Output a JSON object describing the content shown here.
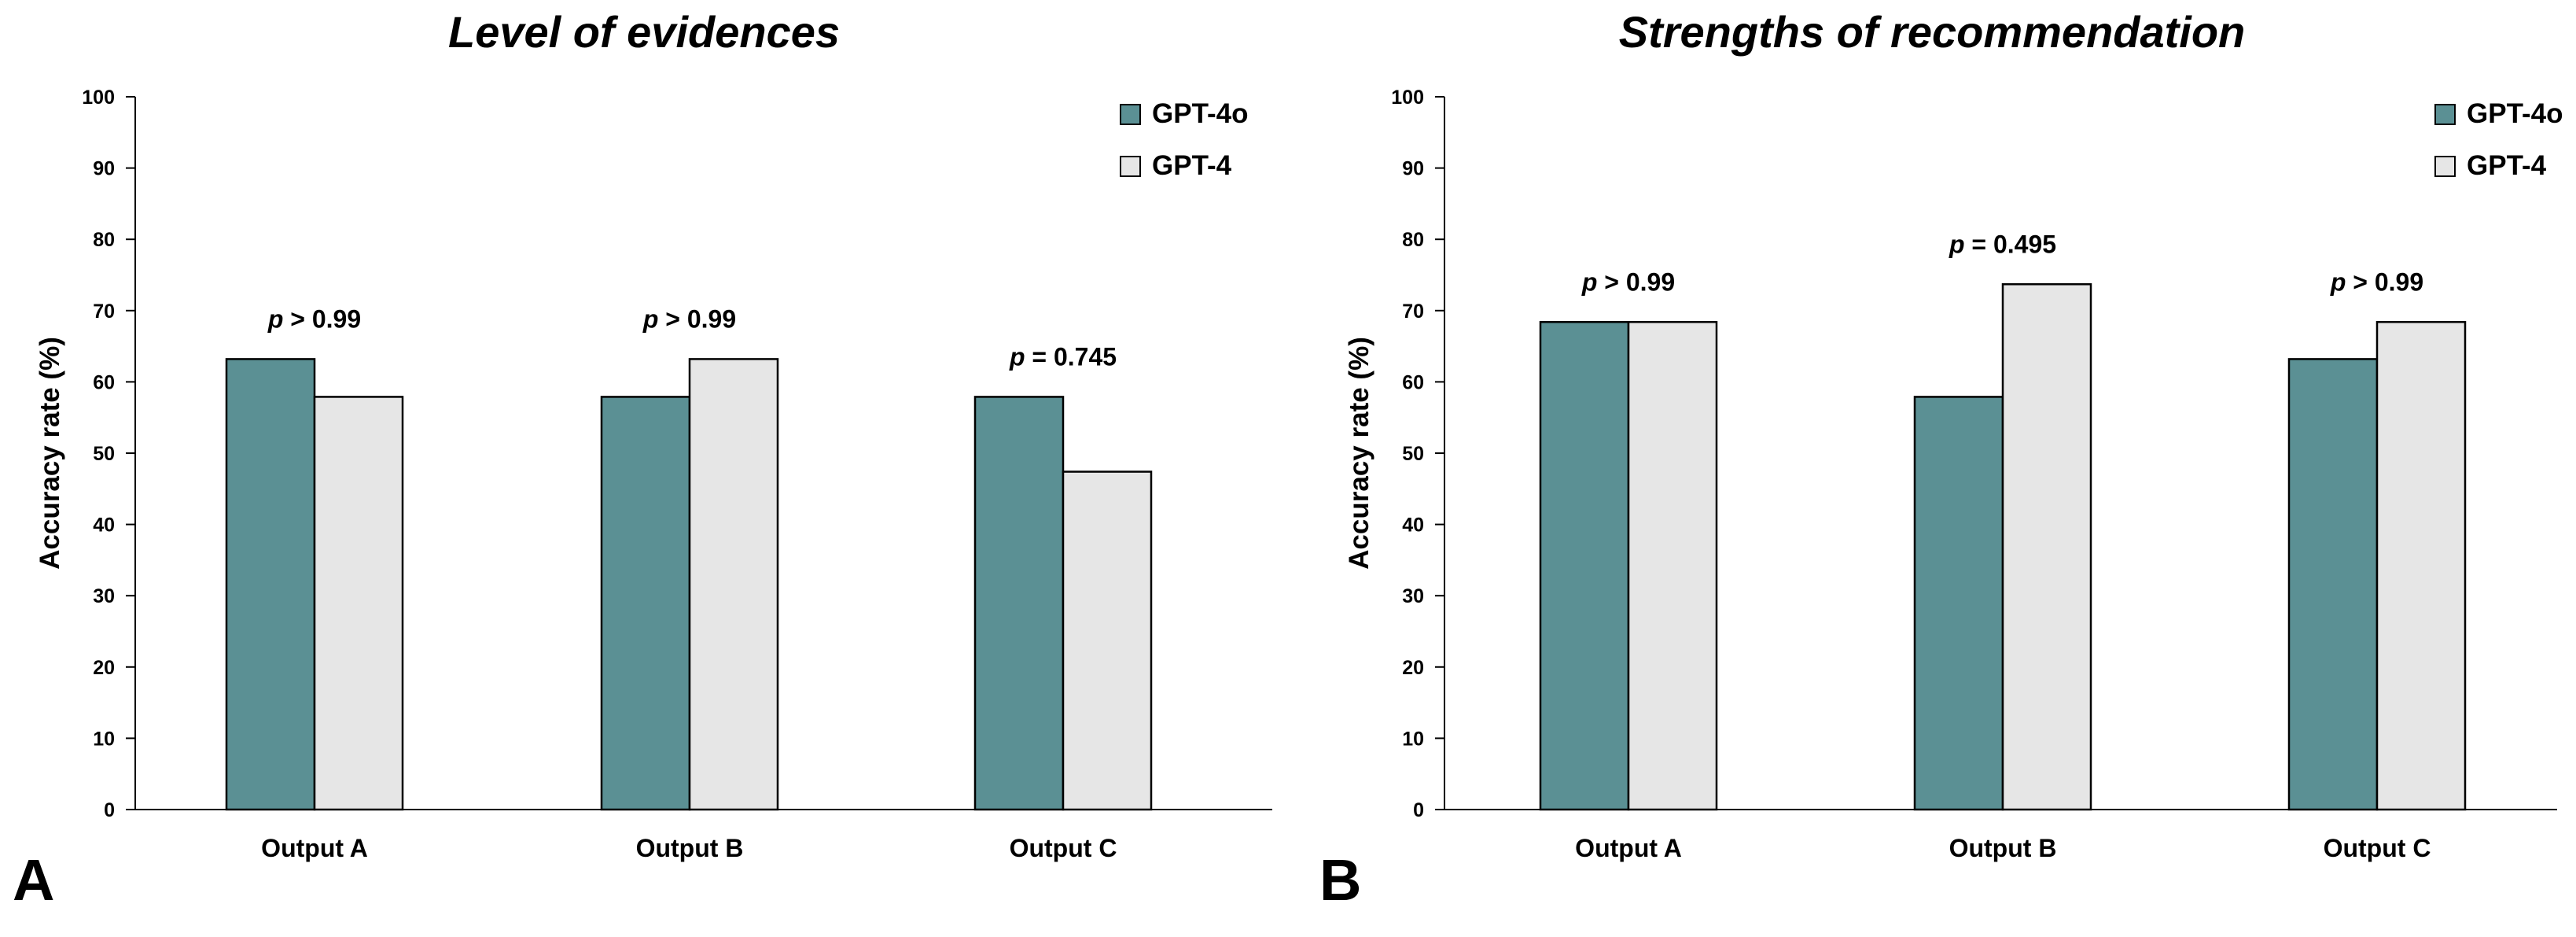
{
  "colors": {
    "gpt4o": "#5b9094",
    "gpt4": "#e6e6e6",
    "axis": "#000000"
  },
  "chart_data": [
    {
      "type": "bar",
      "panel_label": "A",
      "title": "Level of evidences",
      "ylabel": "Accuracy rate (%)",
      "xlabel": "",
      "ylim": [
        0,
        100
      ],
      "yticks": [
        "0",
        "10",
        "20",
        "30",
        "40",
        "50",
        "60",
        "70",
        "80",
        "90",
        "100"
      ],
      "categories": [
        "Output A",
        "Output B",
        "Output C"
      ],
      "series": [
        {
          "name": "GPT-4o",
          "values": [
            63.2,
            57.9,
            57.9
          ]
        },
        {
          "name": "GPT-4",
          "values": [
            57.9,
            63.2,
            47.4
          ]
        }
      ],
      "annotations": [
        {
          "prefix": "p",
          "text": " > 0.99"
        },
        {
          "prefix": "p",
          "text": " > 0.99"
        },
        {
          "prefix": "p",
          "text": " = 0.745"
        }
      ],
      "legend_position": "top-right",
      "grid": false
    },
    {
      "type": "bar",
      "panel_label": "B",
      "title": "Strengths of recommendation",
      "ylabel": "Accuracy rate (%)",
      "xlabel": "",
      "ylim": [
        0,
        100
      ],
      "yticks": [
        "0",
        "10",
        "20",
        "30",
        "40",
        "50",
        "60",
        "70",
        "80",
        "90",
        "100"
      ],
      "categories": [
        "Output A",
        "Output B",
        "Output C"
      ],
      "series": [
        {
          "name": "GPT-4o",
          "values": [
            68.4,
            57.9,
            63.2
          ]
        },
        {
          "name": "GPT-4",
          "values": [
            68.4,
            73.7,
            68.4
          ]
        }
      ],
      "annotations": [
        {
          "prefix": "p",
          "text": " > 0.99"
        },
        {
          "prefix": "p",
          "text": " = 0.495"
        },
        {
          "prefix": "p",
          "text": " > 0.99"
        }
      ],
      "legend_position": "top-right",
      "grid": false
    }
  ]
}
